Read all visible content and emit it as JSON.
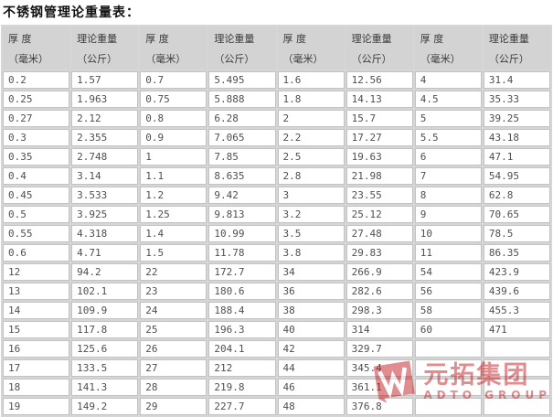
{
  "title": "不锈钢管理论重量表：",
  "table": {
    "columns": [
      {
        "line1": "厚 度",
        "line2": "（毫米）"
      },
      {
        "line1": "理论重量",
        "line2": "（公斤）"
      },
      {
        "line1": "厚 度",
        "line2": "（毫米）"
      },
      {
        "line1": "理论重量",
        "line2": "（公斤）"
      },
      {
        "line1": "厚 度",
        "line2": "（毫米）"
      },
      {
        "line1": "理论重量",
        "line2": "（公斤）"
      },
      {
        "line1": "厚 度",
        "line2": "（毫米）"
      },
      {
        "line1": "理论重量",
        "line2": "（公斤）"
      }
    ],
    "rows": [
      [
        "0.2",
        "1.57",
        "0.7",
        "5.495",
        "1.6",
        "12.56",
        "4",
        "31.4"
      ],
      [
        "0.25",
        "1.963",
        "0.75",
        "5.888",
        "1.8",
        "14.13",
        "4.5",
        "35.33"
      ],
      [
        "0.27",
        "2.12",
        "0.8",
        "6.28",
        "2",
        "15.7",
        "5",
        "39.25"
      ],
      [
        "0.3",
        "2.355",
        "0.9",
        "7.065",
        "2.2",
        "17.27",
        "5.5",
        "43.18"
      ],
      [
        "0.35",
        "2.748",
        "1",
        "7.85",
        "2.5",
        "19.63",
        "6",
        "47.1"
      ],
      [
        "0.4",
        "3.14",
        "1.1",
        "8.635",
        "2.8",
        "21.98",
        "7",
        "54.95"
      ],
      [
        "0.45",
        "3.533",
        "1.2",
        "9.42",
        "3",
        "23.55",
        "8",
        "62.8"
      ],
      [
        "0.5",
        "3.925",
        "1.25",
        "9.813",
        "3.2",
        "25.12",
        "9",
        "70.65"
      ],
      [
        "0.55",
        "4.318",
        "1.4",
        "10.99",
        "3.5",
        "27.48",
        "10",
        "78.5"
      ],
      [
        "0.6",
        "4.71",
        "1.5",
        "11.78",
        "3.8",
        "29.83",
        "11",
        "86.35"
      ],
      [
        "12",
        "94.2",
        "22",
        "172.7",
        "34",
        "266.9",
        "54",
        "423.9"
      ],
      [
        "13",
        "102.1",
        "23",
        "180.6",
        "36",
        "282.6",
        "56",
        "439.6"
      ],
      [
        "14",
        "109.9",
        "24",
        "188.4",
        "38",
        "298.3",
        "58",
        "455.3"
      ],
      [
        "15",
        "117.8",
        "25",
        "196.3",
        "40",
        "314",
        "60",
        "471"
      ],
      [
        "16",
        "125.6",
        "26",
        "204.1",
        "42",
        "329.7",
        "",
        ""
      ],
      [
        "17",
        "133.5",
        "27",
        "212",
        "44",
        "345.4",
        "",
        ""
      ],
      [
        "18",
        "141.3",
        "28",
        "219.8",
        "46",
        "361.1",
        "",
        ""
      ],
      [
        "19",
        "149.2",
        "29",
        "227.7",
        "48",
        "376.8",
        "",
        ""
      ]
    ]
  },
  "watermark": {
    "cn": "元拓集团",
    "en": "ADTO GROUP",
    "color": "#c41e23"
  },
  "colors": {
    "header_bg": "#d3d3d3",
    "table_bg": "#d6d6d6",
    "cell_bg": "#ffffff",
    "cell_border": "#c2c2c2",
    "cell_text": "#4f4f4f",
    "title_text": "#121212"
  }
}
